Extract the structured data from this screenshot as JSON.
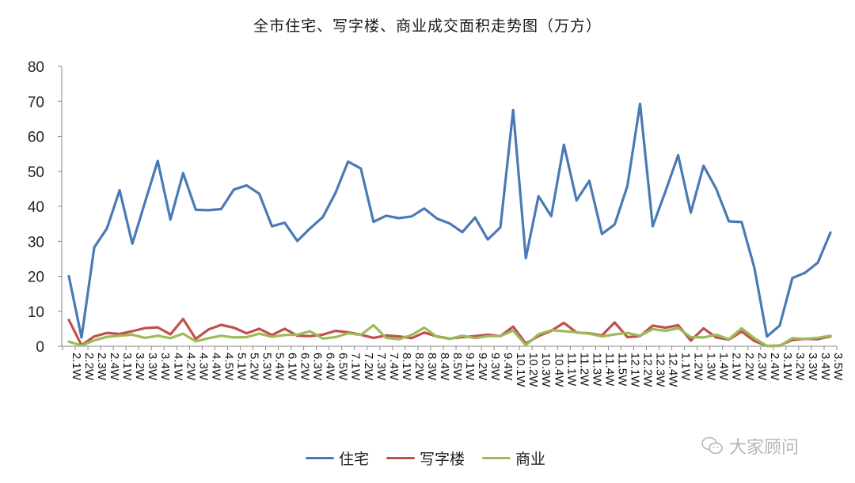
{
  "title": "全市住宅、写字楼、商业成交面积走势图（万方）",
  "legend": [
    {
      "label": "住宅",
      "color": "#4a7ab5"
    },
    {
      "label": "写字楼",
      "color": "#c0504d"
    },
    {
      "label": "商业",
      "color": "#9bbb59"
    }
  ],
  "watermark": {
    "text": "大家顾问",
    "icon": "wechat-icon"
  },
  "chart_data": {
    "type": "line",
    "title": "全市住宅、写字楼、商业成交面积走势图（万方）",
    "xlabel": "",
    "ylabel": "",
    "ylim": [
      0,
      80
    ],
    "yticks": [
      0,
      10,
      20,
      30,
      40,
      50,
      60,
      70,
      80
    ],
    "grid": false,
    "legend_position": "bottom",
    "categories": [
      "2.1W",
      "2.2W",
      "2.3W",
      "2.4W",
      "3.1W",
      "3.2W",
      "3.3W",
      "3.4W",
      "4.1W",
      "4.2W",
      "4.3W",
      "4.4W",
      "4.5W",
      "5.1W",
      "5.2W",
      "5.3W",
      "5.4W",
      "6.1W",
      "6.2W",
      "6.3W",
      "6.4W",
      "6.5W",
      "7.1W",
      "7.2W",
      "7.3W",
      "7.4W",
      "8.1W",
      "8.2W",
      "8.3W",
      "8.4W",
      "8.5W",
      "9.1W",
      "9.2W",
      "9.3W",
      "9.4W",
      "10.1W",
      "10.2W",
      "10.3W",
      "10.4W",
      "11.1W",
      "11.2W",
      "11.3W",
      "11.4W",
      "11.5W",
      "12.1W",
      "12.2W",
      "12.3W",
      "12.4W",
      "1.1W",
      "1.2W",
      "1.3W",
      "1.4W",
      "2.1W",
      "2.2W",
      "2.3W",
      "2.4W",
      "3.1W",
      "3.2W",
      "3.3W",
      "3.4W",
      "3.5W"
    ],
    "series": [
      {
        "name": "住宅",
        "color": "#4a7ab5",
        "values": [
          20,
          2.5,
          28.3,
          33.7,
          44.6,
          29.3,
          41.2,
          53,
          36.2,
          49.5,
          39,
          38.9,
          39.2,
          44.8,
          46,
          43.6,
          34.3,
          35.3,
          30.1,
          33.7,
          36.9,
          43.8,
          52.8,
          50.8,
          35.6,
          37.3,
          36.6,
          37.1,
          39.4,
          36.5,
          35.1,
          32.6,
          36.8,
          30.5,
          34,
          67.5,
          25.2,
          42.9,
          37.2,
          57.6,
          41.7,
          47.3,
          32.1,
          34.8,
          45.8,
          69.3,
          34.3,
          44.3,
          54.6,
          38.2,
          51.6,
          45,
          35.7,
          35.5,
          22.5,
          2.8,
          5.9,
          19.5,
          21,
          23.9,
          32.5
        ]
      },
      {
        "name": "写字楼",
        "color": "#c0504d",
        "values": [
          7.5,
          0.3,
          2.8,
          3.8,
          3.5,
          4.3,
          5.2,
          5.4,
          3.4,
          7.8,
          2.1,
          4.8,
          6.1,
          5.3,
          3.7,
          5,
          3.2,
          5,
          3,
          2.9,
          3.3,
          4.4,
          4,
          3.3,
          2.4,
          3.1,
          2.8,
          2.3,
          3.9,
          2.8,
          2.2,
          2.6,
          2.9,
          3.3,
          2.9,
          5.6,
          0.8,
          2.9,
          4.4,
          6.7,
          3.9,
          3.7,
          3.1,
          6.8,
          2.6,
          2.9,
          5.9,
          5.3,
          6,
          1.6,
          5.1,
          2.5,
          1.9,
          4.2,
          1.5,
          0.1,
          0.2,
          1.8,
          2.1,
          2,
          2.8
        ]
      },
      {
        "name": "商业",
        "color": "#9bbb59",
        "values": [
          1.3,
          0.2,
          1.7,
          2.7,
          3,
          3.3,
          2.4,
          3,
          2.3,
          3.6,
          1.4,
          2.3,
          3,
          2.5,
          2.6,
          3.6,
          2.7,
          3.2,
          3.3,
          4.3,
          2.2,
          2.6,
          3.7,
          3.2,
          6,
          2.4,
          2,
          3.2,
          5.3,
          2.7,
          2.1,
          3,
          2.3,
          2.9,
          2.9,
          4.5,
          0.3,
          3.4,
          4.6,
          4.3,
          4,
          3.6,
          2.8,
          3.4,
          3.8,
          3,
          4.9,
          4.4,
          5.2,
          2.6,
          2.5,
          3.3,
          2,
          5.1,
          2.3,
          0.1,
          0.1,
          2.3,
          2.1,
          2.4,
          3
        ]
      }
    ]
  }
}
